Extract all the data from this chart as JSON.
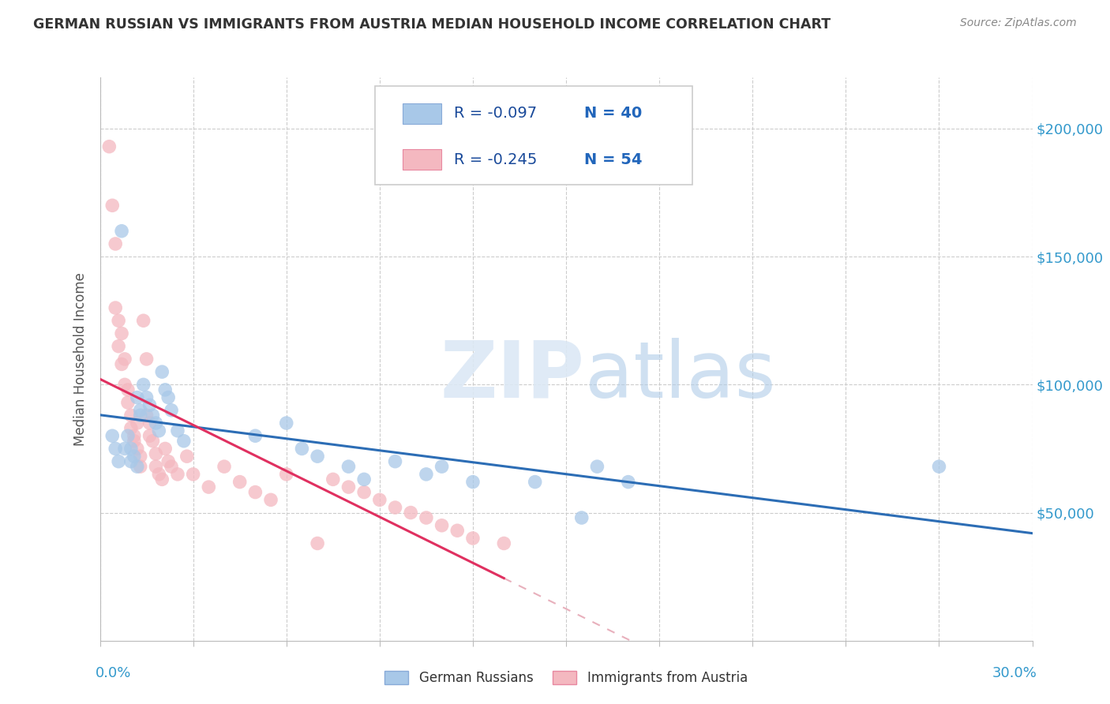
{
  "title": "GERMAN RUSSIAN VS IMMIGRANTS FROM AUSTRIA MEDIAN HOUSEHOLD INCOME CORRELATION CHART",
  "source": "Source: ZipAtlas.com",
  "ylabel": "Median Household Income",
  "xlim": [
    0.0,
    0.3
  ],
  "ylim": [
    0,
    220000
  ],
  "yticks": [
    0,
    50000,
    100000,
    150000,
    200000
  ],
  "xticks": [
    0.0,
    0.03,
    0.06,
    0.09,
    0.12,
    0.15,
    0.18,
    0.21,
    0.24,
    0.27,
    0.3
  ],
  "legend_blue_R": "-0.097",
  "legend_blue_N": "40",
  "legend_pink_R": "-0.245",
  "legend_pink_N": "54",
  "blue_color": "#a8c8e8",
  "pink_color": "#f4b8c0",
  "blue_line_color": "#2c6db5",
  "pink_line_color": "#e03060",
  "dashed_line_color": "#e8b0bc",
  "watermark_zip": "ZIP",
  "watermark_atlas": "atlas",
  "blue_scatter_x": [
    0.004,
    0.005,
    0.006,
    0.007,
    0.008,
    0.009,
    0.01,
    0.01,
    0.011,
    0.012,
    0.012,
    0.013,
    0.013,
    0.014,
    0.015,
    0.016,
    0.017,
    0.018,
    0.019,
    0.02,
    0.021,
    0.022,
    0.023,
    0.025,
    0.027,
    0.05,
    0.06,
    0.065,
    0.07,
    0.08,
    0.085,
    0.095,
    0.105,
    0.11,
    0.12,
    0.14,
    0.155,
    0.16,
    0.17,
    0.27
  ],
  "blue_scatter_y": [
    80000,
    75000,
    70000,
    160000,
    75000,
    80000,
    75000,
    70000,
    72000,
    68000,
    95000,
    90000,
    88000,
    100000,
    95000,
    92000,
    88000,
    85000,
    82000,
    105000,
    98000,
    95000,
    90000,
    82000,
    78000,
    80000,
    85000,
    75000,
    72000,
    68000,
    63000,
    70000,
    65000,
    68000,
    62000,
    62000,
    48000,
    68000,
    62000,
    68000
  ],
  "pink_scatter_x": [
    0.003,
    0.004,
    0.005,
    0.005,
    0.006,
    0.006,
    0.007,
    0.007,
    0.008,
    0.008,
    0.009,
    0.009,
    0.01,
    0.01,
    0.011,
    0.011,
    0.012,
    0.012,
    0.013,
    0.013,
    0.014,
    0.015,
    0.015,
    0.016,
    0.016,
    0.017,
    0.018,
    0.018,
    0.019,
    0.02,
    0.021,
    0.022,
    0.023,
    0.025,
    0.028,
    0.03,
    0.035,
    0.04,
    0.045,
    0.05,
    0.055,
    0.06,
    0.07,
    0.075,
    0.08,
    0.085,
    0.09,
    0.095,
    0.1,
    0.105,
    0.11,
    0.115,
    0.12,
    0.13
  ],
  "pink_scatter_y": [
    193000,
    170000,
    155000,
    130000,
    125000,
    115000,
    120000,
    108000,
    110000,
    100000,
    98000,
    93000,
    88000,
    83000,
    80000,
    78000,
    85000,
    75000,
    72000,
    68000,
    125000,
    110000,
    88000,
    85000,
    80000,
    78000,
    73000,
    68000,
    65000,
    63000,
    75000,
    70000,
    68000,
    65000,
    72000,
    65000,
    60000,
    68000,
    62000,
    58000,
    55000,
    65000,
    38000,
    63000,
    60000,
    58000,
    55000,
    52000,
    50000,
    48000,
    45000,
    43000,
    40000,
    38000
  ]
}
